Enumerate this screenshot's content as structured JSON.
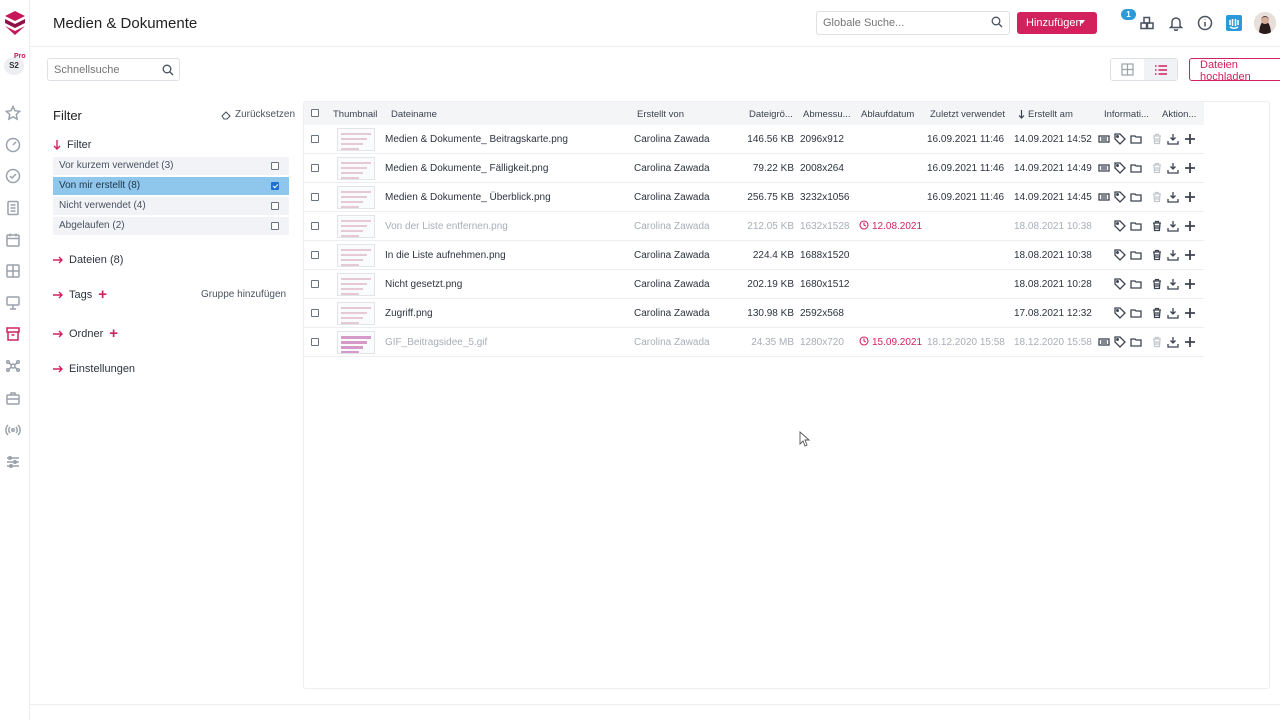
{
  "header": {
    "title": "Medien & Dokumente",
    "global_search_placeholder": "Globale Suche...",
    "add_button": "Hinzufügen",
    "notification_count": "1"
  },
  "rail": {
    "workspace": "S2",
    "plan": "Pro"
  },
  "toolbar": {
    "quick_search_placeholder": "Schnellsuche",
    "upload_button": "Dateien hochladen"
  },
  "filter": {
    "title": "Filter",
    "reset_label": "Zurücksetzen",
    "section_filter": "Filter",
    "options": [
      {
        "label": "Vor kurzem verwendet (3)",
        "checked": false
      },
      {
        "label": "Von mir erstellt (8)",
        "checked": true
      },
      {
        "label": "Nicht verwendet (4)",
        "checked": false
      },
      {
        "label": "Abgelaufen (2)",
        "checked": false
      }
    ],
    "section_files": "Dateien (8)",
    "section_tags": "Tags",
    "add_group": "Gruppe hinzufügen",
    "section_folders": "Ordner",
    "section_settings": "Einstellungen"
  },
  "table": {
    "columns": {
      "thumbnail": "Thumbnail",
      "filename": "Dateiname",
      "created_by": "Erstellt von",
      "size": "Dateigrö...",
      "dimensions": "Abmessu...",
      "expiry": "Ablaufdatum",
      "last_used": "Zuletzt verwendet",
      "created_at": "Erstellt am",
      "info": "Informati...",
      "actions": "Aktion..."
    },
    "rows": [
      {
        "name": "Medien & Dokumente_ Beitragskarte.png",
        "creator": "Carolina Zawada",
        "size": "146.56 KB",
        "dims": "2096x912",
        "expiry": "",
        "last_used": "16.09.2021 11:46",
        "created": "14.09.2021 14:52",
        "dim": false
      },
      {
        "name": "Medien & Dokumente_ Fälligkeit.png",
        "creator": "Carolina Zawada",
        "size": "79.22 KB",
        "dims": "2008x264",
        "expiry": "",
        "last_used": "16.09.2021 11:46",
        "created": "14.09.2021 14:49",
        "dim": false
      },
      {
        "name": "Medien & Dokumente_ Überblick.png",
        "creator": "Carolina Zawada",
        "size": "256.75 KB",
        "dims": "3232x1056",
        "expiry": "",
        "last_used": "16.09.2021 11:46",
        "created": "14.09.2021 14:45",
        "dim": false
      },
      {
        "name": "Von der Liste entfernen.png",
        "creator": "Carolina Zawada",
        "size": "212.05 KB",
        "dims": "1632x1528",
        "expiry": "12.08.2021",
        "last_used": "",
        "created": "18.08.2021 10:38",
        "dim": true
      },
      {
        "name": "In die Liste aufnehmen.png",
        "creator": "Carolina Zawada",
        "size": "224.4 KB",
        "dims": "1688x1520",
        "expiry": "",
        "last_used": "",
        "created": "18.08.2021 10:38",
        "dim": false
      },
      {
        "name": "Nicht gesetzt.png",
        "creator": "Carolina Zawada",
        "size": "202.19 KB",
        "dims": "1680x1512",
        "expiry": "",
        "last_used": "",
        "created": "18.08.2021 10:28",
        "dim": false
      },
      {
        "name": "Zugriff.png",
        "creator": "Carolina Zawada",
        "size": "130.98 KB",
        "dims": "2592x568",
        "expiry": "",
        "last_used": "",
        "created": "17.08.2021 12:32",
        "dim": false
      },
      {
        "name": "GIF_Beitragsidee_5.gif",
        "creator": "Carolina Zawada",
        "size": "24.35 MB",
        "dims": "1280x720",
        "expiry": "15.09.2021",
        "last_used": "18.12.2020 15:58",
        "created": "18.12.2020 15:58",
        "dim": true
      }
    ]
  },
  "colors": {
    "accent": "#d3215e",
    "selected_filter": "#8fc6ec",
    "badge": "#2a9bd8"
  }
}
